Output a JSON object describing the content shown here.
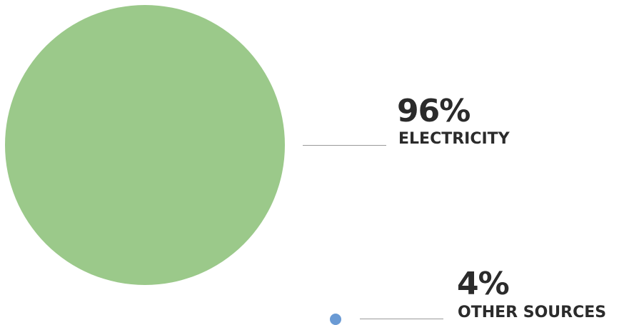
{
  "chart_data": {
    "type": "bubble",
    "series": [
      {
        "value": 96,
        "value_label": "96%",
        "label": "ELECTRICITY",
        "color": "#9bc98a"
      },
      {
        "value": 4,
        "value_label": "4%",
        "label": "OTHER SOURCES",
        "color": "#6a9ad4"
      }
    ],
    "grid": false,
    "legend": "none"
  }
}
